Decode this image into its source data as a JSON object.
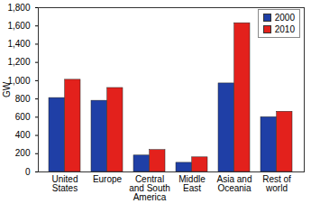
{
  "chart_data": {
    "type": "bar",
    "categories": [
      "United States",
      "Europe",
      "Central and South America",
      "Middle East",
      "Asia and Oceania",
      "Rest of world"
    ],
    "series": [
      {
        "name": "2000",
        "color": "#1f3fa6",
        "values": [
          810,
          780,
          180,
          100,
          970,
          600
        ]
      },
      {
        "name": "2010",
        "color": "#e3211c",
        "values": [
          1010,
          920,
          240,
          160,
          1630,
          660
        ]
      }
    ],
    "y_label": "GW",
    "ylim": [
      0,
      1800
    ],
    "yticks": [
      0,
      200,
      400,
      600,
      800,
      1000,
      1200,
      1400,
      1600,
      1800
    ],
    "grid": false,
    "legend": "top-right"
  }
}
